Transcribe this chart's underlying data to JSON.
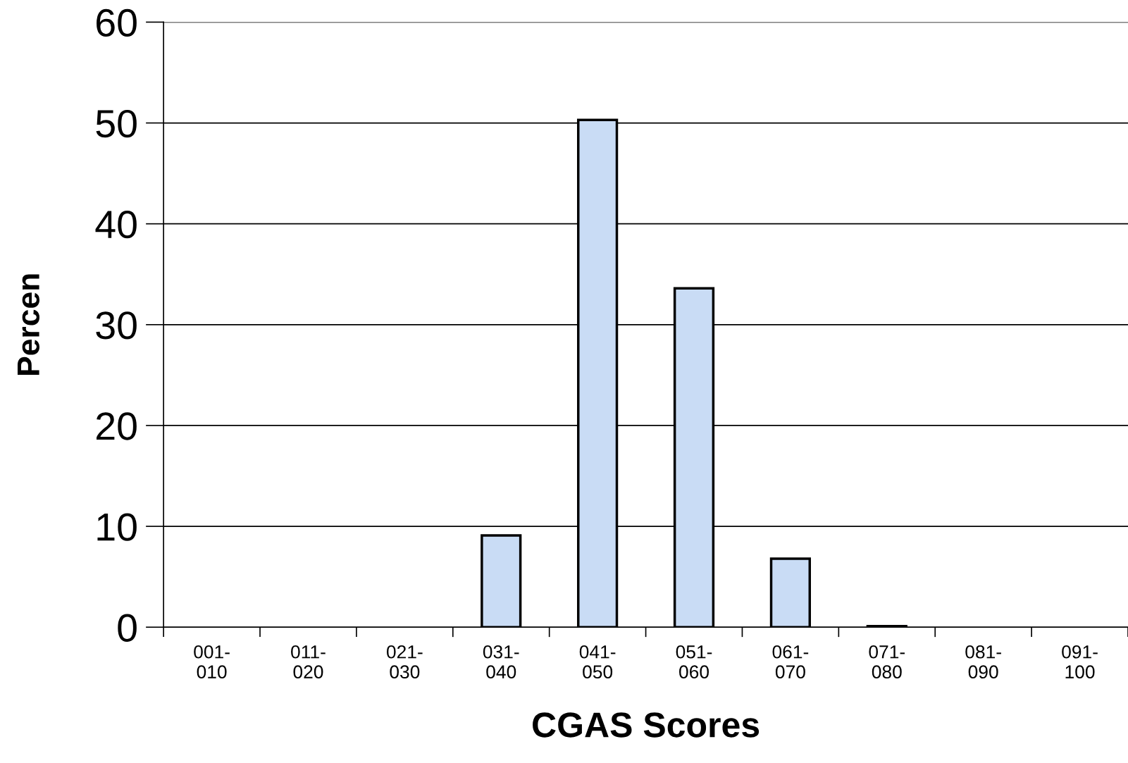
{
  "chart_data": {
    "type": "bar",
    "xlabel": "CGAS Scores",
    "ylabel": "Percen",
    "categories": [
      "001-\n010",
      "011-\n020",
      "021-\n030",
      "031-\n040",
      "041-\n050",
      "051-\n060",
      "061-\n070",
      "071-\n080",
      "081-\n090",
      "091-\n100"
    ],
    "values": [
      null,
      null,
      null,
      9.1,
      50.3,
      33.6,
      6.8,
      0.1,
      null,
      null
    ],
    "color": "#c9dcf5",
    "ylim": [
      0,
      60
    ],
    "yticks": [
      0,
      10,
      20,
      30,
      40,
      50,
      60
    ],
    "grid": "y"
  }
}
